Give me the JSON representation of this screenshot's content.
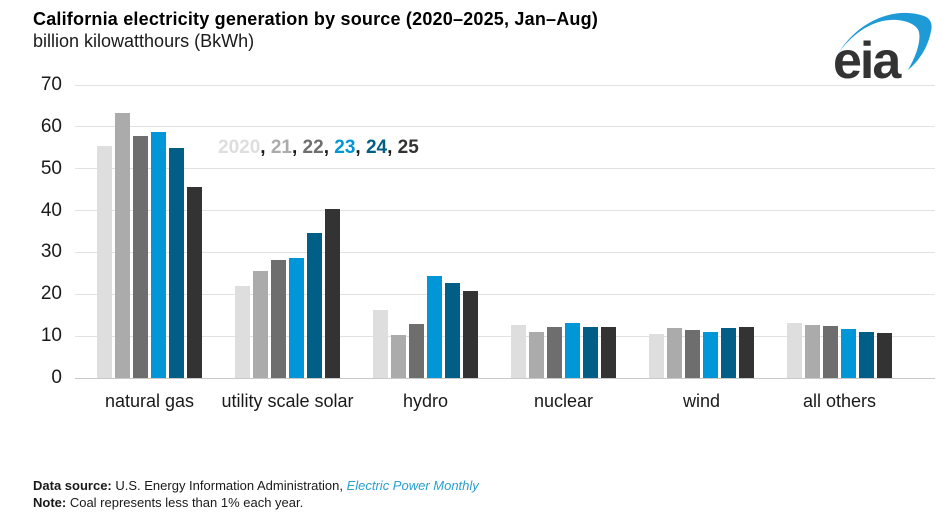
{
  "header": {
    "title": "California electricity generation by source (2020–2025, Jan–Aug)",
    "subtitle": "billion kilowatthours (BkWh)",
    "logo_text": "eia"
  },
  "legend": {
    "separator": ", ",
    "separator_color": "#1a1a1a"
  },
  "chart_data": {
    "type": "bar",
    "title": "California electricity generation by source (2020–2025, Jan–Aug)",
    "ylabel": "billion kilowatthours (BkWh)",
    "categories": [
      "natural gas",
      "utility scale solar",
      "hydro",
      "nuclear",
      "wind",
      "all others"
    ],
    "series": [
      {
        "name": "2020",
        "color": "#dedede",
        "values": [
          55.4,
          22.0,
          16.3,
          12.6,
          10.6,
          13.2
        ]
      },
      {
        "name": "21",
        "color": "#ababab",
        "values": [
          63.4,
          25.5,
          10.3,
          11.0,
          12.0,
          12.6
        ]
      },
      {
        "name": "22",
        "color": "#6e6e6e",
        "values": [
          57.8,
          28.2,
          12.8,
          12.2,
          11.5,
          12.4
        ]
      },
      {
        "name": "23",
        "color": "#0096d7",
        "values": [
          58.7,
          28.7,
          24.3,
          13.2,
          11.0,
          11.6
        ]
      },
      {
        "name": "24",
        "color": "#005e87",
        "values": [
          55.0,
          34.7,
          22.6,
          12.2,
          12.0,
          11.0
        ]
      },
      {
        "name": "25",
        "color": "#333333",
        "values": [
          45.6,
          40.4,
          20.8,
          12.1,
          12.1,
          10.7
        ]
      }
    ],
    "ylim": [
      0,
      70
    ],
    "ytick_step": 10,
    "grid": true,
    "legend_position": "inside-top-left"
  },
  "footer": {
    "source_label": "Data source:",
    "source_text": " U.S. Energy Information Administration, ",
    "source_link": "Electric Power Monthly",
    "note_label": "Note:",
    "note_text": " Coal represents less than 1% each year."
  }
}
